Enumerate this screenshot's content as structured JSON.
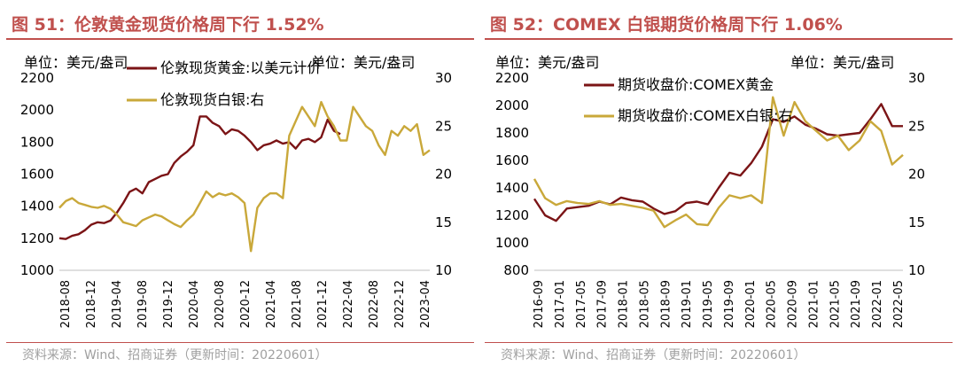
{
  "left": {
    "title": "图 51：伦敦黄金现货价格周下行 1.52%",
    "source": "资料来源：Wind、招商证券（更新时间：20220601）",
    "chart_data": {
      "type": "line",
      "unit_left": "单位：美元/盎司",
      "unit_right": "单位：美元/盎司",
      "y_left": {
        "range": [
          1000,
          2200
        ],
        "ticks": [
          "1000",
          "1200",
          "1400",
          "1600",
          "1800",
          "2000",
          "2200"
        ]
      },
      "y_right": {
        "range": [
          10,
          30
        ],
        "ticks": [
          "10",
          "15",
          "20",
          "25",
          "30"
        ]
      },
      "x_ticks": [
        "2018-08",
        "2018-12",
        "2019-04",
        "2019-08",
        "2019-12",
        "2020-04",
        "2020-08",
        "2020-12",
        "2021-04",
        "2021-08",
        "2021-12",
        "2022-04",
        "2022-08",
        "2022-12",
        "2023-04"
      ],
      "x_range": [
        0,
        58
      ],
      "series": [
        {
          "name": "伦敦现货黄金:以美元计价",
          "axis": "left",
          "color": "#7b1416",
          "x": [
            0,
            1,
            2,
            3,
            4,
            5,
            6,
            7,
            8,
            9,
            10,
            11,
            12,
            13,
            14,
            15,
            16,
            17,
            18,
            19,
            20,
            21,
            22,
            23,
            24,
            25,
            26,
            27,
            28,
            29,
            30,
            31,
            32,
            33,
            34,
            35,
            36,
            37,
            38,
            39,
            40,
            41,
            42,
            43,
            44
          ],
          "values": [
            1200,
            1195,
            1215,
            1225,
            1250,
            1285,
            1300,
            1295,
            1310,
            1360,
            1420,
            1490,
            1510,
            1480,
            1550,
            1570,
            1590,
            1600,
            1670,
            1710,
            1740,
            1780,
            1960,
            1960,
            1920,
            1900,
            1850,
            1880,
            1870,
            1840,
            1800,
            1750,
            1780,
            1790,
            1810,
            1790,
            1800,
            1760,
            1810,
            1820,
            1800,
            1830,
            1940,
            1870,
            1850
          ]
        },
        {
          "name": "伦敦现货白银:右",
          "axis": "right",
          "color": "#c9a83a",
          "x": [
            0,
            1,
            2,
            3,
            4,
            5,
            6,
            7,
            8,
            9,
            10,
            11,
            12,
            13,
            14,
            15,
            16,
            17,
            18,
            19,
            20,
            21,
            22,
            23,
            24,
            25,
            26,
            27,
            28,
            29,
            30,
            31,
            32,
            33,
            34,
            35,
            36,
            37,
            38,
            39,
            40,
            41,
            42,
            43,
            44,
            45,
            46,
            47,
            48,
            49,
            50,
            51,
            52,
            53,
            54,
            55,
            56,
            57,
            58
          ],
          "values": [
            16.5,
            17.2,
            17.5,
            17.0,
            16.8,
            16.6,
            16.5,
            16.7,
            16.4,
            15.8,
            15.0,
            14.8,
            14.6,
            15.2,
            15.5,
            15.8,
            15.6,
            15.2,
            14.8,
            14.5,
            15.2,
            15.8,
            17.0,
            18.2,
            17.6,
            18.0,
            17.8,
            18.0,
            17.6,
            17.0,
            12.0,
            16.5,
            17.5,
            18.0,
            18.0,
            17.5,
            24.0,
            25.5,
            27.0,
            26.0,
            25.0,
            27.5,
            26.0,
            25.0,
            23.5,
            23.5,
            27.0,
            26.0,
            25.0,
            24.5,
            23.0,
            22.0,
            24.5,
            24.0,
            25.0,
            24.5,
            25.2,
            22.0,
            22.5
          ]
        }
      ]
    }
  },
  "right": {
    "title": "图 52：COMEX 白银期货价格周下行 1.06%",
    "source": "资料来源：Wind、招商证券（更新时间：20220601）",
    "chart_data": {
      "type": "line",
      "unit_left": "单位：美元/盎司",
      "unit_right": "单位：美元/盎司",
      "y_left": {
        "range": [
          800,
          2200
        ],
        "ticks": [
          "800",
          "1000",
          "1200",
          "1400",
          "1600",
          "1800",
          "2000",
          "2200"
        ]
      },
      "y_right": {
        "range": [
          10,
          30
        ],
        "ticks": [
          "10",
          "15",
          "20",
          "25",
          "30"
        ]
      },
      "x_ticks": [
        "2016-09",
        "2017-01",
        "2017-05",
        "2017-09",
        "2018-01",
        "2018-05",
        "2018-09",
        "2019-01",
        "2019-05",
        "2019-09",
        "2020-01",
        "2020-05",
        "2020-09",
        "2021-01",
        "2021-05",
        "2021-09",
        "2022-01",
        "2022-05"
      ],
      "x_range": [
        0,
        34
      ],
      "series": [
        {
          "name": "期货收盘价:COMEX黄金",
          "axis": "left",
          "color": "#7b1416",
          "x": [
            0,
            1,
            2,
            3,
            4,
            5,
            6,
            7,
            8,
            9,
            10,
            11,
            12,
            13,
            14,
            15,
            16,
            17,
            18,
            19,
            20,
            21,
            22,
            23,
            24,
            25,
            26,
            27,
            28,
            29,
            30,
            31,
            32,
            33,
            34
          ],
          "values": [
            1320,
            1200,
            1160,
            1250,
            1260,
            1270,
            1300,
            1280,
            1330,
            1310,
            1300,
            1250,
            1210,
            1230,
            1290,
            1300,
            1280,
            1400,
            1510,
            1490,
            1580,
            1700,
            1900,
            1880,
            1920,
            1860,
            1830,
            1790,
            1780,
            1790,
            1800,
            1900,
            2010,
            1850,
            1850
          ]
        },
        {
          "name": "期货收盘价:COMEX白银:右",
          "axis": "right",
          "color": "#c9a83a",
          "x": [
            0,
            1,
            2,
            3,
            4,
            5,
            6,
            7,
            8,
            9,
            10,
            11,
            12,
            13,
            14,
            15,
            16,
            17,
            18,
            19,
            20,
            21,
            22,
            23,
            24,
            25,
            26,
            27,
            28,
            29,
            30,
            31,
            32,
            33,
            34
          ],
          "values": [
            19.5,
            17.5,
            16.8,
            17.2,
            17.0,
            16.9,
            17.2,
            16.8,
            16.9,
            16.7,
            16.5,
            16.2,
            14.5,
            15.2,
            15.8,
            14.8,
            14.7,
            16.5,
            17.8,
            17.5,
            17.8,
            17.0,
            28.0,
            24.0,
            27.5,
            25.5,
            24.5,
            23.5,
            24.0,
            22.5,
            23.5,
            25.5,
            24.5,
            21.0,
            22.0
          ]
        }
      ]
    }
  }
}
